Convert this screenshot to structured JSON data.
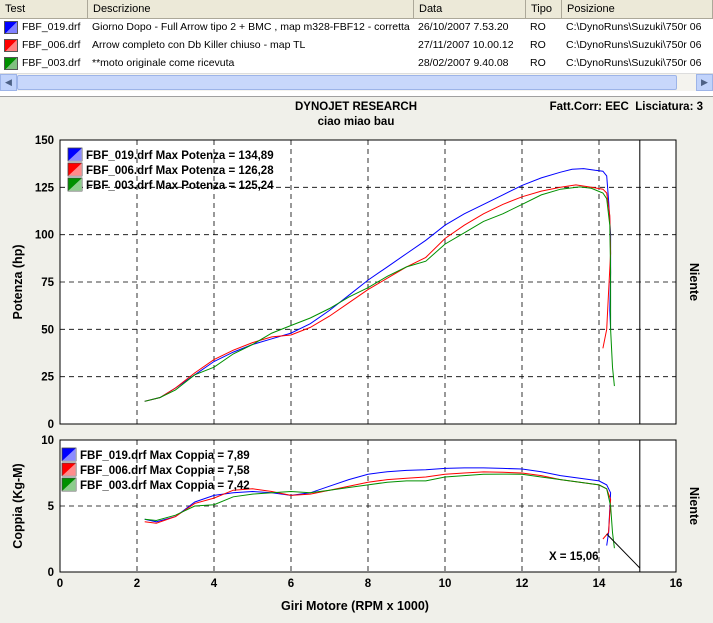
{
  "table": {
    "columns": [
      "Test",
      "Descrizione",
      "Data",
      "Tipo",
      "Posizione"
    ],
    "rows": [
      {
        "test": "FBF_019.drf",
        "desc": "Giorno Dopo - Full Arrow tipo 2 + BMC , map m328-FBF12 - corretta",
        "date": "26/10/2007 7.53.20",
        "tipo": "RO",
        "pos": "C:\\DynoRuns\\Suzuki\\750r 06"
      },
      {
        "test": "FBF_006.drf",
        "desc": "Arrow completo con Db Killer chiuso - map TL",
        "date": "27/11/2007 10.00.12",
        "tipo": "RO",
        "pos": "C:\\DynoRuns\\Suzuki\\750r 06"
      },
      {
        "test": "FBF_003.drf",
        "desc": "**moto originale come ricevuta",
        "date": "28/02/2007 9.40.08",
        "tipo": "RO",
        "pos": "C:\\DynoRuns\\Suzuki\\750r 06"
      }
    ]
  },
  "scroll": {
    "left_arrow": "◀",
    "right_arrow": "▶"
  },
  "colors": {
    "s019": "#0000ff",
    "s006": "#ff0000",
    "s003": "#009000"
  },
  "header": {
    "title": "DYNOJET RESEARCH",
    "subtitle": "ciao miao bau",
    "correction": "Fatt.Corr: EEC  Lisciatura: 3"
  },
  "chart_data": [
    {
      "type": "line",
      "ylabel": "Potenza (hp)",
      "right_label": "Niente",
      "ylim": [
        0,
        150
      ],
      "yticks": [
        0,
        25,
        50,
        75,
        100,
        125,
        150
      ],
      "xlim": [
        0,
        16
      ],
      "legend": [
        "FBF_019.drf Max Potenza = 134,89",
        "FBF_006.drf Max Potenza = 126,28",
        "FBF_003.drf Max Potenza = 125,24"
      ],
      "series": [
        {
          "name": "FBF_019.drf",
          "color": "#0000ff",
          "points": [
            [
              2.2,
              12
            ],
            [
              2.6,
              14
            ],
            [
              3,
              19
            ],
            [
              3.5,
              26
            ],
            [
              4,
              33
            ],
            [
              4.5,
              38
            ],
            [
              5,
              42
            ],
            [
              5.5,
              45
            ],
            [
              6,
              48
            ],
            [
              6.5,
              53
            ],
            [
              7,
              60
            ],
            [
              7.5,
              68
            ],
            [
              8,
              76
            ],
            [
              8.5,
              83
            ],
            [
              9,
              90
            ],
            [
              9.5,
              97
            ],
            [
              10,
              105
            ],
            [
              10.5,
              111
            ],
            [
              11,
              116
            ],
            [
              11.5,
              121
            ],
            [
              12,
              126
            ],
            [
              12.5,
              130
            ],
            [
              13,
              133
            ],
            [
              13.3,
              134.5
            ],
            [
              13.6,
              134.89
            ],
            [
              13.9,
              134
            ],
            [
              14.1,
              133.5
            ],
            [
              14.2,
              131
            ],
            [
              14.25,
              118
            ],
            [
              14.3,
              100
            ],
            [
              14.3,
              80
            ],
            [
              14.28,
              60
            ],
            [
              14.3,
              50
            ]
          ]
        },
        {
          "name": "FBF_006.drf",
          "color": "#ff0000",
          "points": [
            [
              2.2,
              12
            ],
            [
              2.6,
              14
            ],
            [
              3,
              19
            ],
            [
              3.5,
              27
            ],
            [
              4,
              34
            ],
            [
              4.5,
              39
            ],
            [
              5,
              43
            ],
            [
              5.5,
              46
            ],
            [
              6,
              47
            ],
            [
              6.5,
              51
            ],
            [
              7,
              57
            ],
            [
              7.5,
              64
            ],
            [
              8,
              71
            ],
            [
              8.5,
              77
            ],
            [
              9,
              83
            ],
            [
              9.5,
              88
            ],
            [
              10,
              98
            ],
            [
              10.5,
              105
            ],
            [
              11,
              111
            ],
            [
              11.5,
              116
            ],
            [
              12,
              120
            ],
            [
              12.5,
              123
            ],
            [
              13,
              125
            ],
            [
              13.4,
              126.28
            ],
            [
              13.8,
              125
            ],
            [
              14.1,
              124
            ],
            [
              14.2,
              122
            ],
            [
              14.28,
              110
            ],
            [
              14.3,
              90
            ],
            [
              14.25,
              70
            ],
            [
              14.2,
              50
            ],
            [
              14.1,
              40
            ]
          ]
        },
        {
          "name": "FBF_003.drf",
          "color": "#009000",
          "points": [
            [
              2.2,
              12
            ],
            [
              2.6,
              14
            ],
            [
              3,
              18
            ],
            [
              3.5,
              26
            ],
            [
              4,
              30
            ],
            [
              4.5,
              37
            ],
            [
              5,
              42
            ],
            [
              5.5,
              48
            ],
            [
              6,
              52
            ],
            [
              6.5,
              56
            ],
            [
              7,
              61
            ],
            [
              7.5,
              67
            ],
            [
              8,
              72
            ],
            [
              8.5,
              78
            ],
            [
              9,
              83
            ],
            [
              9.5,
              86
            ],
            [
              10,
              95
            ],
            [
              10.5,
              101
            ],
            [
              11,
              107
            ],
            [
              11.5,
              111
            ],
            [
              12,
              116
            ],
            [
              12.5,
              121
            ],
            [
              13,
              124
            ],
            [
              13.5,
              125.24
            ],
            [
              13.8,
              124.5
            ],
            [
              14.1,
              122
            ],
            [
              14.2,
              119
            ],
            [
              14.28,
              105
            ],
            [
              14.3,
              80
            ],
            [
              14.3,
              50
            ],
            [
              14.35,
              30
            ],
            [
              14.4,
              20
            ]
          ]
        }
      ]
    },
    {
      "type": "line",
      "ylabel": "Coppia (Kg-M)",
      "right_label": "Niente",
      "xlabel": "Giri Motore (RPM x 1000)",
      "ylim": [
        0,
        10
      ],
      "yticks": [
        0,
        5,
        10
      ],
      "xlim": [
        0,
        16
      ],
      "xticks": [
        0,
        2,
        4,
        6,
        8,
        10,
        12,
        14,
        16
      ],
      "legend": [
        "FBF_019.drf Max Coppia = 7,89",
        "FBF_006.drf Max Coppia = 7,58",
        "FBF_003.drf Max Coppia = 7,42"
      ],
      "cursor": {
        "label": "X = 15,06",
        "x": 15.06
      },
      "series": [
        {
          "name": "FBF_019.drf",
          "color": "#0000ff",
          "points": [
            [
              2.2,
              4.0
            ],
            [
              2.5,
              3.8
            ],
            [
              3,
              4.2
            ],
            [
              3.5,
              5.3
            ],
            [
              4,
              5.8
            ],
            [
              4.5,
              6.0
            ],
            [
              5,
              6.1
            ],
            [
              5.5,
              6.0
            ],
            [
              6,
              5.8
            ],
            [
              6.5,
              6.0
            ],
            [
              7,
              6.5
            ],
            [
              7.5,
              7.0
            ],
            [
              8,
              7.4
            ],
            [
              8.5,
              7.6
            ],
            [
              9,
              7.7
            ],
            [
              9.5,
              7.75
            ],
            [
              10,
              7.85
            ],
            [
              10.5,
              7.89
            ],
            [
              11,
              7.89
            ],
            [
              11.5,
              7.85
            ],
            [
              12,
              7.8
            ],
            [
              12.5,
              7.6
            ],
            [
              13,
              7.3
            ],
            [
              13.5,
              7.1
            ],
            [
              14,
              6.9
            ],
            [
              14.2,
              6.6
            ],
            [
              14.3,
              6.0
            ],
            [
              14.25,
              3.0
            ],
            [
              14.2,
              2.0
            ]
          ]
        },
        {
          "name": "FBF_006.drf",
          "color": "#ff0000",
          "points": [
            [
              2.2,
              3.8
            ],
            [
              2.5,
              3.7
            ],
            [
              3,
              4.2
            ],
            [
              3.5,
              5.2
            ],
            [
              4,
              5.6
            ],
            [
              4.5,
              6.2
            ],
            [
              5,
              6.3
            ],
            [
              5.5,
              6.1
            ],
            [
              6,
              5.8
            ],
            [
              6.5,
              5.9
            ],
            [
              7,
              6.2
            ],
            [
              7.5,
              6.5
            ],
            [
              8,
              6.8
            ],
            [
              8.5,
              7.0
            ],
            [
              9,
              7.1
            ],
            [
              9.5,
              7.2
            ],
            [
              10,
              7.4
            ],
            [
              10.5,
              7.5
            ],
            [
              11,
              7.58
            ],
            [
              11.5,
              7.55
            ],
            [
              12,
              7.5
            ],
            [
              12.5,
              7.3
            ],
            [
              13,
              7.0
            ],
            [
              13.5,
              6.8
            ],
            [
              14,
              6.6
            ],
            [
              14.2,
              6.3
            ],
            [
              14.3,
              5.5
            ],
            [
              14.25,
              3.0
            ],
            [
              14.1,
              2.5
            ]
          ]
        },
        {
          "name": "FBF_003.drf",
          "color": "#009000",
          "points": [
            [
              2.2,
              4.0
            ],
            [
              2.5,
              3.9
            ],
            [
              3,
              4.3
            ],
            [
              3.5,
              5.0
            ],
            [
              4,
              5.1
            ],
            [
              4.5,
              5.7
            ],
            [
              5,
              5.9
            ],
            [
              5.5,
              6.0
            ],
            [
              6,
              6.1
            ],
            [
              6.5,
              6.0
            ],
            [
              7,
              6.2
            ],
            [
              7.5,
              6.4
            ],
            [
              8,
              6.6
            ],
            [
              8.5,
              6.8
            ],
            [
              9,
              6.9
            ],
            [
              9.5,
              6.9
            ],
            [
              10,
              7.2
            ],
            [
              10.5,
              7.3
            ],
            [
              11,
              7.4
            ],
            [
              11.5,
              7.42
            ],
            [
              12,
              7.4
            ],
            [
              12.5,
              7.2
            ],
            [
              13,
              7.0
            ],
            [
              13.5,
              6.8
            ],
            [
              14,
              6.6
            ],
            [
              14.2,
              6.3
            ],
            [
              14.3,
              5.0
            ],
            [
              14.35,
              3.0
            ],
            [
              14.4,
              1.8
            ]
          ]
        }
      ]
    }
  ]
}
